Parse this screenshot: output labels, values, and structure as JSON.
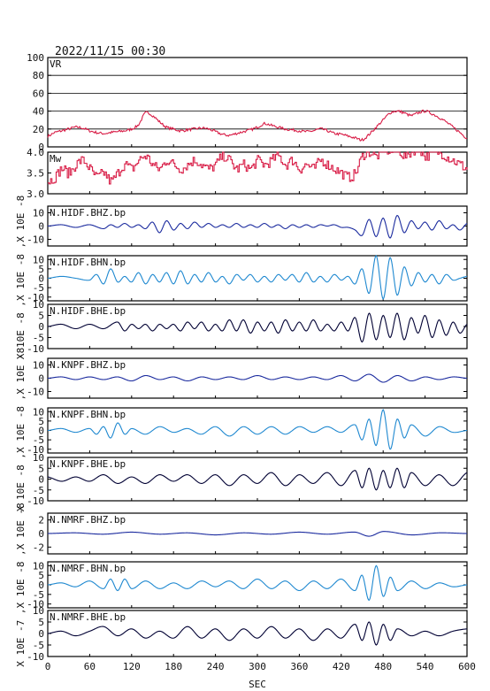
{
  "header": {
    "datetime": "2022/11/15 00:30"
  },
  "chart_data": {
    "type": "line",
    "xlabel": "SEC",
    "xlim": [
      0,
      600
    ],
    "xticks": [
      "0",
      "60",
      "120",
      "180",
      "240",
      "300",
      "360",
      "420",
      "480",
      "540",
      "600"
    ],
    "panels": [
      {
        "label": "VR",
        "ylim": [
          0,
          100
        ],
        "yticks": [
          "0",
          "20",
          "40",
          "60",
          "80",
          "100"
        ],
        "color": "#d81b45",
        "grid": true,
        "style": "vr",
        "x": [
          0,
          10,
          20,
          30,
          40,
          50,
          60,
          70,
          80,
          90,
          100,
          110,
          120,
          130,
          140,
          150,
          160,
          170,
          180,
          190,
          200,
          210,
          220,
          230,
          240,
          250,
          260,
          270,
          280,
          290,
          300,
          310,
          320,
          330,
          340,
          350,
          360,
          370,
          380,
          390,
          400,
          410,
          420,
          430,
          440,
          450,
          460,
          470,
          480,
          490,
          500,
          510,
          520,
          530,
          540,
          550,
          560,
          570,
          580,
          590,
          600
        ],
        "values": [
          12,
          16,
          18,
          20,
          22,
          21,
          18,
          16,
          15,
          16,
          17,
          18,
          20,
          25,
          38,
          35,
          28,
          22,
          20,
          18,
          19,
          20,
          21,
          20,
          17,
          14,
          13,
          15,
          17,
          19,
          22,
          26,
          24,
          22,
          20,
          19,
          18,
          17,
          18,
          20,
          18,
          15,
          14,
          12,
          10,
          8,
          14,
          22,
          30,
          38,
          40,
          38,
          35,
          38,
          40,
          37,
          33,
          28,
          22,
          16,
          10
        ]
      },
      {
        "label": "Mw",
        "ylim": [
          3.0,
          4.0
        ],
        "yticks": [
          "3.0",
          "3.5",
          "4.0"
        ],
        "color": "#d81b45",
        "grid": false,
        "style": "mw",
        "x": [
          0,
          10,
          20,
          30,
          40,
          50,
          60,
          70,
          80,
          90,
          100,
          110,
          120,
          130,
          140,
          150,
          160,
          170,
          180,
          190,
          200,
          210,
          220,
          230,
          240,
          250,
          260,
          270,
          280,
          290,
          300,
          310,
          320,
          330,
          340,
          350,
          360,
          370,
          380,
          390,
          400,
          410,
          420,
          430,
          440,
          450,
          460,
          470,
          480,
          490,
          500,
          510,
          520,
          530,
          540,
          550,
          560,
          570,
          580,
          590,
          600
        ],
        "values": [
          3.3,
          3.4,
          3.6,
          3.5,
          3.7,
          3.8,
          3.6,
          3.4,
          3.5,
          3.3,
          3.5,
          3.7,
          3.6,
          3.8,
          3.9,
          3.7,
          3.6,
          3.8,
          3.7,
          3.6,
          3.7,
          3.8,
          3.7,
          3.6,
          3.7,
          3.9,
          3.8,
          3.6,
          3.7,
          3.6,
          3.8,
          3.7,
          3.8,
          3.9,
          3.7,
          3.8,
          3.6,
          3.7,
          3.6,
          3.8,
          3.7,
          3.6,
          3.5,
          3.4,
          3.5,
          3.9,
          4.0,
          3.9,
          4.1,
          4.0,
          4.1,
          3.9,
          4.0,
          4.1,
          3.9,
          4.0,
          4.0,
          3.9,
          3.8,
          3.7,
          3.6
        ]
      },
      {
        "label": "N.HIDF.BHZ.bp",
        "scale_label": "10E -8",
        "ylim": [
          -15,
          15
        ],
        "yticks": [
          "-10",
          "0",
          "10"
        ],
        "color": "#1a2a9e",
        "style": "wave",
        "x": [
          0,
          20,
          40,
          60,
          80,
          90,
          100,
          110,
          120,
          130,
          140,
          150,
          160,
          170,
          180,
          190,
          200,
          210,
          220,
          230,
          240,
          250,
          260,
          270,
          280,
          290,
          300,
          310,
          320,
          330,
          340,
          350,
          360,
          370,
          380,
          390,
          400,
          410,
          420,
          430,
          440,
          450,
          460,
          470,
          480,
          490,
          500,
          510,
          520,
          530,
          540,
          550,
          560,
          570,
          580,
          590,
          600
        ],
        "values": [
          0,
          1,
          -1,
          1,
          -2,
          1,
          -1,
          2,
          -1,
          1,
          -2,
          3,
          -5,
          4,
          -3,
          2,
          -2,
          3,
          -1,
          2,
          -1,
          1,
          -1,
          2,
          -1,
          1,
          -1,
          2,
          -1,
          1,
          -2,
          1,
          -1,
          1,
          -1,
          1,
          0,
          1,
          -1,
          -1,
          -3,
          -7,
          5,
          -8,
          6,
          -9,
          8,
          -5,
          4,
          -2,
          3,
          -3,
          4,
          -2,
          1,
          -3,
          2
        ]
      },
      {
        "label": "N.HIDF.BHN.bp",
        "scale_label": "10E -8",
        "ylim": [
          -12,
          12
        ],
        "yticks": [
          "-10",
          "-5",
          "0",
          "5",
          "10"
        ],
        "color": "#1e88d0",
        "style": "wave",
        "x": [
          0,
          20,
          40,
          60,
          70,
          80,
          90,
          100,
          110,
          120,
          130,
          140,
          150,
          160,
          170,
          180,
          190,
          200,
          210,
          220,
          230,
          240,
          250,
          260,
          270,
          280,
          290,
          300,
          310,
          320,
          330,
          340,
          350,
          360,
          370,
          380,
          390,
          400,
          410,
          420,
          430,
          440,
          450,
          460,
          470,
          480,
          490,
          500,
          510,
          520,
          530,
          540,
          550,
          560,
          570,
          580,
          590,
          600
        ],
        "values": [
          0,
          1,
          0,
          -1,
          2,
          -3,
          5,
          -2,
          1,
          -2,
          3,
          -3,
          2,
          -2,
          3,
          -3,
          4,
          -3,
          2,
          -2,
          3,
          -2,
          1,
          -3,
          2,
          -1,
          2,
          -2,
          1,
          -2,
          2,
          -1,
          2,
          -2,
          3,
          -2,
          1,
          -2,
          2,
          -1,
          1,
          -3,
          5,
          -8,
          12,
          -11,
          11,
          -9,
          6,
          -4,
          3,
          -2,
          2,
          -3,
          2,
          -1,
          0,
          1
        ]
      },
      {
        "label": "N.HIDF.BHE.bp",
        "scale_label": "10E -8",
        "ylim": [
          -10,
          10
        ],
        "yticks": [
          "-10",
          "-5",
          "0",
          "5",
          "10"
        ],
        "color": "#000033",
        "style": "wave",
        "x": [
          0,
          20,
          40,
          60,
          80,
          100,
          110,
          120,
          130,
          140,
          150,
          160,
          170,
          180,
          190,
          200,
          210,
          220,
          230,
          240,
          250,
          260,
          270,
          280,
          290,
          300,
          310,
          320,
          330,
          340,
          350,
          360,
          370,
          380,
          390,
          400,
          410,
          420,
          430,
          440,
          450,
          460,
          470,
          480,
          490,
          500,
          510,
          520,
          530,
          540,
          550,
          560,
          570,
          580,
          590,
          600
        ],
        "values": [
          0,
          1,
          -1,
          1,
          -1,
          2,
          -2,
          1,
          -1,
          1,
          -2,
          1,
          -1,
          1,
          -2,
          2,
          -1,
          2,
          -2,
          1,
          -2,
          3,
          -2,
          3,
          -3,
          2,
          -2,
          2,
          -3,
          3,
          -2,
          2,
          -2,
          3,
          -2,
          1,
          -2,
          2,
          -2,
          4,
          -7,
          6,
          -6,
          5,
          -5,
          6,
          -6,
          4,
          -3,
          5,
          -5,
          3,
          -4,
          2,
          -3,
          1
        ]
      },
      {
        "label": "N.KNPF.BHZ.bp",
        "scale_label": "10E -8",
        "ylim": [
          -15,
          15
        ],
        "yticks": [
          "-10",
          "0",
          "10"
        ],
        "color": "#1a2a9e",
        "style": "wave",
        "x": [
          0,
          20,
          40,
          60,
          80,
          100,
          120,
          140,
          160,
          180,
          200,
          220,
          240,
          260,
          280,
          300,
          320,
          340,
          360,
          380,
          400,
          420,
          440,
          460,
          480,
          500,
          520,
          540,
          560,
          580,
          600
        ],
        "values": [
          0,
          1,
          -1,
          1,
          -1,
          1,
          -2,
          2,
          -1,
          1,
          -2,
          1,
          -1,
          1,
          -1,
          2,
          -1,
          1,
          -1,
          1,
          -1,
          2,
          -2,
          3,
          -3,
          2,
          -2,
          1,
          -1,
          1,
          0
        ]
      },
      {
        "label": "N.KNPF.BHN.bp",
        "scale_label": "10E -8",
        "ylim": [
          -12,
          12
        ],
        "yticks": [
          "-10",
          "-5",
          "0",
          "5",
          "10"
        ],
        "color": "#1e88d0",
        "style": "wave",
        "x": [
          0,
          20,
          40,
          60,
          70,
          80,
          90,
          100,
          110,
          120,
          140,
          160,
          180,
          200,
          220,
          240,
          260,
          280,
          300,
          320,
          340,
          360,
          380,
          400,
          420,
          440,
          450,
          460,
          470,
          480,
          490,
          500,
          510,
          520,
          540,
          560,
          580,
          600
        ],
        "values": [
          0,
          1,
          -1,
          1,
          -2,
          2,
          -4,
          4,
          -2,
          1,
          -2,
          2,
          -1,
          1,
          -2,
          2,
          -3,
          2,
          -2,
          2,
          -2,
          2,
          -1,
          2,
          -1,
          3,
          -5,
          6,
          -8,
          11,
          -10,
          6,
          -4,
          3,
          -3,
          2,
          -1,
          0
        ]
      },
      {
        "label": "N.KNPF.BHE.bp",
        "scale_label": "10E -8",
        "ylim": [
          -10,
          10
        ],
        "yticks": [
          "-10",
          "-5",
          "0",
          "5",
          "10"
        ],
        "color": "#000033",
        "style": "wave",
        "x": [
          0,
          20,
          40,
          60,
          80,
          100,
          120,
          140,
          160,
          180,
          200,
          220,
          240,
          260,
          280,
          300,
          320,
          340,
          360,
          380,
          400,
          420,
          440,
          450,
          460,
          470,
          480,
          490,
          500,
          510,
          520,
          540,
          560,
          580,
          600
        ],
        "values": [
          1,
          -1,
          1,
          -1,
          2,
          -2,
          1,
          -2,
          2,
          -1,
          2,
          -2,
          2,
          -3,
          2,
          -2,
          3,
          -3,
          2,
          -2,
          3,
          -3,
          4,
          -4,
          5,
          -5,
          4,
          -4,
          5,
          -4,
          3,
          -3,
          2,
          -3,
          3
        ]
      },
      {
        "label": "N.NMRF.BHZ.bp",
        "scale_label": "10E -7",
        "ylim": [
          -3,
          3
        ],
        "yticks": [
          "-2",
          "0",
          "2"
        ],
        "color": "#1a2a9e",
        "style": "wave",
        "x": [
          0,
          40,
          80,
          120,
          160,
          200,
          240,
          280,
          320,
          360,
          400,
          440,
          460,
          480,
          520,
          560,
          600
        ],
        "values": [
          0,
          0.1,
          -0.1,
          0.2,
          -0.1,
          0.1,
          -0.2,
          0.1,
          -0.1,
          0.2,
          -0.1,
          0.2,
          -0.4,
          0.3,
          -0.2,
          0.1,
          0
        ]
      },
      {
        "label": "N.NMRF.BHN.bp",
        "scale_label": "10E -8",
        "ylim": [
          -12,
          12
        ],
        "yticks": [
          "-10",
          "-5",
          "0",
          "5",
          "10"
        ],
        "color": "#1e88d0",
        "style": "wave",
        "x": [
          0,
          20,
          40,
          60,
          80,
          90,
          100,
          110,
          120,
          140,
          160,
          180,
          200,
          220,
          240,
          260,
          280,
          300,
          320,
          340,
          360,
          380,
          400,
          420,
          440,
          450,
          460,
          470,
          480,
          490,
          500,
          520,
          540,
          560,
          580,
          600
        ],
        "values": [
          0,
          1,
          -1,
          2,
          -2,
          3,
          -3,
          3,
          -2,
          2,
          -2,
          1,
          -2,
          2,
          -1,
          2,
          -2,
          3,
          -2,
          2,
          -3,
          2,
          -2,
          3,
          -3,
          5,
          -8,
          10,
          -6,
          4,
          -3,
          2,
          -2,
          1,
          -1,
          0
        ]
      },
      {
        "label": "N.NMRF.BHE.bp",
        "scale_label": "10E -8",
        "ylim": [
          -10,
          10
        ],
        "yticks": [
          "-10",
          "-5",
          "0",
          "5",
          "10"
        ],
        "color": "#000033",
        "style": "wave",
        "x": [
          0,
          20,
          40,
          60,
          80,
          100,
          120,
          140,
          160,
          180,
          200,
          220,
          240,
          260,
          280,
          300,
          320,
          340,
          360,
          380,
          400,
          420,
          440,
          450,
          460,
          470,
          480,
          490,
          500,
          520,
          540,
          560,
          580,
          600
        ],
        "values": [
          0,
          1,
          -1,
          1,
          3,
          -1,
          2,
          -2,
          1,
          -2,
          3,
          -2,
          2,
          -3,
          2,
          -2,
          3,
          -2,
          2,
          -3,
          2,
          -2,
          4,
          -3,
          5,
          -5,
          4,
          -3,
          2,
          -1,
          1,
          -1,
          1,
          2
        ]
      }
    ]
  }
}
